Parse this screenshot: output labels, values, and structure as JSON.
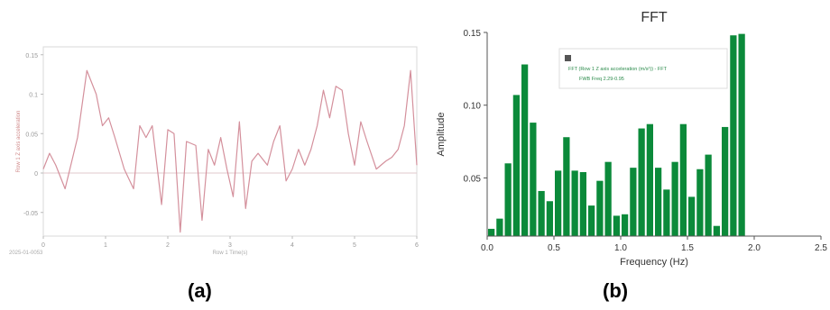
{
  "panels": {
    "a_label": "(a)",
    "b_label": "(b)"
  },
  "chart_data": [
    {
      "type": "line",
      "title": "",
      "xlabel": "Row 1 Time(s)",
      "ylabel": "Row 1 Z axis acceleration",
      "corner_note": "2025-01-0053",
      "x_ticks": [
        "0",
        "1",
        "2",
        "3",
        "4",
        "5",
        "6"
      ],
      "y_ticks": [
        "-0.05",
        "0",
        "0.05",
        "0.1",
        "0.15"
      ],
      "xlim": [
        0,
        6
      ],
      "ylim": [
        -0.08,
        0.16
      ],
      "grid": false,
      "line_color": "#d4909c",
      "series": [
        {
          "x": [
            0,
            0.1,
            0.2,
            0.35,
            0.55,
            0.7,
            0.85,
            0.95,
            1.05,
            1.15,
            1.3,
            1.45,
            1.55,
            1.65,
            1.75,
            1.9,
            2.0,
            2.1,
            2.2,
            2.3,
            2.45,
            2.55,
            2.65,
            2.75,
            2.85,
            2.95,
            3.05,
            3.15,
            3.25,
            3.35,
            3.45,
            3.6,
            3.7,
            3.8,
            3.9,
            4.0,
            4.1,
            4.2,
            4.3,
            4.4,
            4.5,
            4.6,
            4.7,
            4.8,
            4.9,
            5.0,
            5.1,
            5.2,
            5.35,
            5.5,
            5.6,
            5.7,
            5.8,
            5.9,
            6.0
          ],
          "y": [
            0.005,
            0.025,
            0.01,
            -0.02,
            0.045,
            0.13,
            0.1,
            0.06,
            0.07,
            0.045,
            0.005,
            -0.02,
            0.06,
            0.045,
            0.06,
            -0.04,
            0.055,
            0.05,
            -0.075,
            0.04,
            0.035,
            -0.06,
            0.03,
            0.01,
            0.045,
            0.005,
            -0.03,
            0.065,
            -0.045,
            0.015,
            0.025,
            0.01,
            0.04,
            0.06,
            -0.01,
            0.005,
            0.03,
            0.01,
            0.03,
            0.06,
            0.105,
            0.07,
            0.11,
            0.105,
            0.05,
            0.01,
            0.065,
            0.04,
            0.005,
            0.015,
            0.02,
            0.03,
            0.06,
            0.13,
            0.01
          ]
        }
      ]
    },
    {
      "type": "bar",
      "title": "FFT",
      "xlabel": "Frequency (Hz)",
      "ylabel": "Amplitude",
      "xlim": [
        0,
        2.5
      ],
      "ylim": [
        0.01,
        0.15
      ],
      "x_ticks": [
        "0.0",
        "0.5",
        "1.0",
        "1.5",
        "2.0",
        "2.5"
      ],
      "y_ticks": [
        "0.05",
        "0.10",
        "0.15"
      ],
      "grid": false,
      "legend_position": "top-right",
      "legend_lines": [
        "FFT (Row 1 Z axis acceleration (m/s²)) - FFT",
        "FWB Freq 2.29-0.95"
      ],
      "bar_color": "#0b8a3a",
      "bin_width": 0.0625,
      "x": [
        0.0,
        0.0625,
        0.125,
        0.1875,
        0.25,
        0.3125,
        0.375,
        0.4375,
        0.5,
        0.5625,
        0.625,
        0.6875,
        0.75,
        0.8125,
        0.875,
        0.9375,
        1.0,
        1.0625,
        1.125,
        1.1875,
        1.25,
        1.3125,
        1.375,
        1.4375,
        1.5,
        1.5625,
        1.625,
        1.6875,
        1.75,
        1.8125,
        1.875,
        1.9375,
        2.0,
        2.0625,
        2.125,
        2.1875,
        2.25,
        2.3125,
        2.375,
        2.4375
      ],
      "values": [
        0.015,
        0.022,
        0.06,
        0.107,
        0.128,
        0.088,
        0.041,
        0.034,
        0.055,
        0.078,
        0.055,
        0.054,
        0.031,
        0.048,
        0.061,
        0.024,
        0.025,
        0.057,
        0.084,
        0.087,
        0.057,
        0.042,
        0.061,
        0.087,
        0.037,
        0.056,
        0.066,
        0.017,
        0.085,
        0.148,
        0.149,
        0.0,
        0.0,
        0.0,
        0.0,
        0.0,
        0.0,
        0.0,
        0.0,
        0.0
      ]
    }
  ]
}
